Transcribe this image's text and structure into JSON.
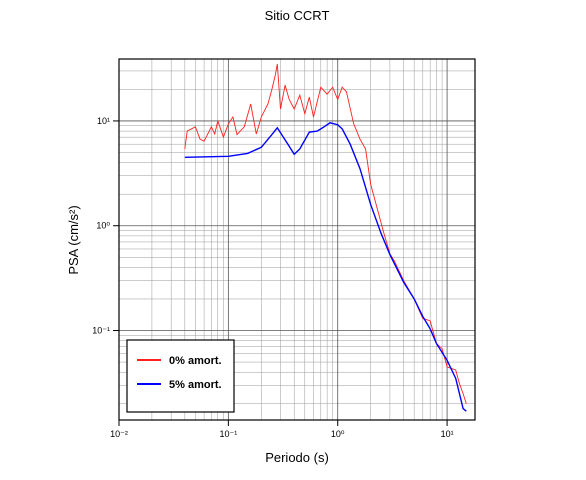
{
  "chart_data": {
    "type": "line",
    "title": "Sitio CCRT",
    "xlabel": "Periodo (s)",
    "ylabel": "PSA (cm/s²)",
    "log_x": true,
    "log_y": true,
    "grid": true,
    "legend": "lower left",
    "xlim": [
      0.01,
      18
    ],
    "ylim": [
      0.014,
      39
    ],
    "xticks": [
      {
        "value": 0.01,
        "label": "10⁻²"
      },
      {
        "value": 0.1,
        "label": "10⁻¹"
      },
      {
        "value": 1,
        "label": "10⁰"
      },
      {
        "value": 10,
        "label": "10¹"
      }
    ],
    "yticks": [
      {
        "value": 0.1,
        "label": "10⁻¹"
      },
      {
        "value": 1,
        "label": "10⁰"
      },
      {
        "value": 10,
        "label": "10¹"
      }
    ],
    "series": [
      {
        "name": "0% amort.",
        "color": "#ff2020",
        "x": [
          0.04,
          0.042,
          0.05,
          0.055,
          0.06,
          0.07,
          0.075,
          0.08,
          0.09,
          0.1,
          0.11,
          0.12,
          0.14,
          0.16,
          0.18,
          0.2,
          0.23,
          0.25,
          0.27,
          0.28,
          0.3,
          0.33,
          0.36,
          0.4,
          0.45,
          0.5,
          0.55,
          0.6,
          0.7,
          0.8,
          0.9,
          1.0,
          1.1,
          1.2,
          1.4,
          1.6,
          1.8,
          2.0,
          2.3,
          2.6,
          3.0,
          3.3,
          4.0,
          5.0,
          6.0,
          7.0,
          8.0,
          9.0,
          10,
          12,
          13,
          14,
          15
        ],
        "values": [
          5.4,
          8.0,
          8.8,
          6.7,
          6.4,
          8.8,
          7.5,
          10,
          7.0,
          9.4,
          10.9,
          7.4,
          8.8,
          14.5,
          7.5,
          10.9,
          14.5,
          20,
          28,
          35,
          13,
          22,
          16,
          13,
          17.6,
          11.7,
          16.9,
          10.9,
          21,
          18,
          21,
          16,
          21,
          19,
          9.4,
          6.7,
          5.4,
          2.5,
          1.45,
          0.9,
          0.54,
          0.46,
          0.3,
          0.2,
          0.13,
          0.124,
          0.075,
          0.067,
          0.045,
          0.042,
          0.031,
          0.025,
          0.02
        ]
      },
      {
        "name": "5% amort.",
        "color": "#0000ff",
        "x": [
          0.04,
          0.1,
          0.15,
          0.2,
          0.25,
          0.28,
          0.35,
          0.4,
          0.45,
          0.55,
          0.65,
          0.75,
          0.85,
          1.0,
          1.1,
          1.3,
          1.6,
          2.0,
          2.5,
          3.0,
          4.0,
          5.0,
          6.0,
          7.0,
          8.0,
          10,
          12,
          14,
          15
        ],
        "values": [
          4.5,
          4.6,
          4.9,
          5.6,
          7.4,
          8.6,
          6.0,
          4.8,
          5.4,
          7.8,
          8.0,
          8.8,
          9.6,
          9.2,
          8.4,
          6.0,
          3.5,
          1.6,
          0.84,
          0.53,
          0.29,
          0.2,
          0.136,
          0.104,
          0.075,
          0.052,
          0.035,
          0.018,
          0.017
        ]
      }
    ]
  }
}
